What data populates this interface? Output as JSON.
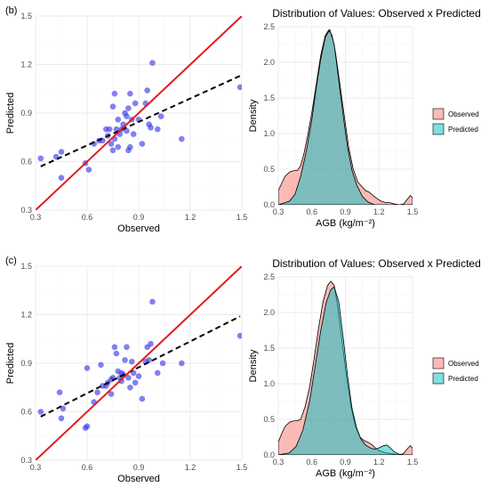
{
  "chart_data": [
    {
      "type": "scatter",
      "panel_label": "(b)",
      "xlabel": "Observed",
      "ylabel": "Predicted",
      "xlim": [
        0.3,
        1.5
      ],
      "ylim": [
        0.3,
        1.5
      ],
      "xticks": [
        "0.3",
        "0.6",
        "0.9",
        "1.2",
        "1.5"
      ],
      "yticks": [
        "0.3",
        "0.6",
        "0.9",
        "1.2",
        "1.5"
      ],
      "grid": true,
      "points": [
        [
          0.33,
          0.62
        ],
        [
          0.42,
          0.63
        ],
        [
          0.45,
          0.66
        ],
        [
          0.45,
          0.5
        ],
        [
          0.59,
          0.59
        ],
        [
          0.61,
          0.55
        ],
        [
          0.64,
          0.71
        ],
        [
          0.67,
          0.73
        ],
        [
          0.69,
          0.73
        ],
        [
          0.71,
          0.8
        ],
        [
          0.72,
          0.76
        ],
        [
          0.73,
          0.8
        ],
        [
          0.74,
          0.71
        ],
        [
          0.75,
          0.67
        ],
        [
          0.75,
          0.94
        ],
        [
          0.76,
          1.02
        ],
        [
          0.76,
          0.74
        ],
        [
          0.77,
          0.8
        ],
        [
          0.78,
          0.69
        ],
        [
          0.78,
          0.86
        ],
        [
          0.79,
          0.77
        ],
        [
          0.8,
          0.8
        ],
        [
          0.81,
          0.83
        ],
        [
          0.82,
          0.9
        ],
        [
          0.83,
          0.88
        ],
        [
          0.83,
          0.79
        ],
        [
          0.84,
          0.93
        ],
        [
          0.84,
          0.67
        ],
        [
          0.85,
          1.02
        ],
        [
          0.85,
          0.69
        ],
        [
          0.86,
          0.86
        ],
        [
          0.87,
          0.77
        ],
        [
          0.88,
          0.96
        ],
        [
          0.9,
          0.86
        ],
        [
          0.92,
          0.71
        ],
        [
          0.94,
          0.96
        ],
        [
          0.95,
          1.04
        ],
        [
          0.96,
          0.83
        ],
        [
          0.97,
          0.81
        ],
        [
          0.98,
          1.21
        ],
        [
          1.01,
          0.8
        ],
        [
          1.03,
          0.88
        ],
        [
          1.15,
          0.74
        ],
        [
          1.49,
          1.06
        ]
      ],
      "identity_line": [
        [
          0.3,
          0.3
        ],
        [
          1.52,
          1.52
        ]
      ],
      "regression_line": [
        [
          0.33,
          0.57
        ],
        [
          1.49,
          1.13
        ]
      ],
      "colors": {
        "points": "#3333e6",
        "identity": "#e31a1c",
        "regression": "#000000"
      }
    },
    {
      "type": "area",
      "title": "Distribution of Values: Observed x Predicted",
      "xlabel": "AGB (kg/m⁻²)",
      "ylabel": "Density",
      "xlim": [
        0.3,
        1.5
      ],
      "ylim": [
        0,
        2.5
      ],
      "xticks": [
        "0.3",
        "0.6",
        "0.9",
        "1.2",
        "1.5"
      ],
      "yticks": [
        "0.0",
        "0.5",
        "1.0",
        "1.5",
        "2.0",
        "2.5"
      ],
      "legend_position": "right",
      "series": [
        {
          "name": "Observed",
          "color": "#f8766d",
          "points": [
            [
              0.3,
              0.2
            ],
            [
              0.33,
              0.3
            ],
            [
              0.36,
              0.4
            ],
            [
              0.4,
              0.46
            ],
            [
              0.44,
              0.48
            ],
            [
              0.47,
              0.48
            ],
            [
              0.5,
              0.55
            ],
            [
              0.53,
              0.72
            ],
            [
              0.56,
              0.95
            ],
            [
              0.6,
              1.3
            ],
            [
              0.64,
              1.7
            ],
            [
              0.68,
              2.1
            ],
            [
              0.72,
              2.38
            ],
            [
              0.75,
              2.45
            ],
            [
              0.78,
              2.38
            ],
            [
              0.81,
              2.15
            ],
            [
              0.85,
              1.7
            ],
            [
              0.89,
              1.25
            ],
            [
              0.93,
              0.8
            ],
            [
              0.97,
              0.5
            ],
            [
              1.01,
              0.32
            ],
            [
              1.05,
              0.25
            ],
            [
              1.08,
              0.2
            ],
            [
              1.11,
              0.18
            ],
            [
              1.14,
              0.14
            ],
            [
              1.18,
              0.09
            ],
            [
              1.22,
              0.05
            ],
            [
              1.26,
              0.03
            ],
            [
              1.3,
              0.03
            ],
            [
              1.34,
              0.01
            ],
            [
              1.38,
              0.0
            ],
            [
              1.42,
              0.01
            ],
            [
              1.45,
              0.07
            ],
            [
              1.48,
              0.13
            ],
            [
              1.5,
              0.1
            ]
          ]
        },
        {
          "name": "Predicted",
          "color": "#00bfc4",
          "points": [
            [
              0.3,
              0.0
            ],
            [
              0.4,
              0.05
            ],
            [
              0.45,
              0.15
            ],
            [
              0.5,
              0.4
            ],
            [
              0.55,
              0.75
            ],
            [
              0.6,
              1.2
            ],
            [
              0.64,
              1.65
            ],
            [
              0.68,
              2.05
            ],
            [
              0.72,
              2.35
            ],
            [
              0.76,
              2.46
            ],
            [
              0.8,
              2.25
            ],
            [
              0.84,
              1.75
            ],
            [
              0.88,
              1.25
            ],
            [
              0.92,
              0.8
            ],
            [
              0.96,
              0.48
            ],
            [
              1.0,
              0.28
            ],
            [
              1.05,
              0.12
            ],
            [
              1.1,
              0.04
            ],
            [
              1.16,
              0.0
            ],
            [
              1.2,
              0.0
            ],
            [
              1.5,
              0.0
            ]
          ]
        }
      ]
    },
    {
      "type": "scatter",
      "panel_label": "(c)",
      "xlabel": "Observed",
      "ylabel": "Predicted",
      "xlim": [
        0.3,
        1.5
      ],
      "ylim": [
        0.3,
        1.5
      ],
      "xticks": [
        "0.3",
        "0.6",
        "0.9",
        "1.2",
        "1.5"
      ],
      "yticks": [
        "0.3",
        "0.6",
        "0.9",
        "1.2",
        "1.5"
      ],
      "grid": true,
      "points": [
        [
          0.33,
          0.6
        ],
        [
          0.44,
          0.72
        ],
        [
          0.45,
          0.56
        ],
        [
          0.46,
          0.62
        ],
        [
          0.59,
          0.5
        ],
        [
          0.6,
          0.51
        ],
        [
          0.6,
          0.87
        ],
        [
          0.64,
          0.66
        ],
        [
          0.66,
          0.72
        ],
        [
          0.68,
          0.89
        ],
        [
          0.69,
          0.76
        ],
        [
          0.71,
          0.76
        ],
        [
          0.72,
          0.78
        ],
        [
          0.74,
          0.71
        ],
        [
          0.74,
          0.8
        ],
        [
          0.75,
          0.81
        ],
        [
          0.76,
          1.0
        ],
        [
          0.77,
          0.96
        ],
        [
          0.78,
          0.85
        ],
        [
          0.79,
          0.81
        ],
        [
          0.8,
          0.79
        ],
        [
          0.8,
          0.84
        ],
        [
          0.81,
          0.83
        ],
        [
          0.82,
          0.92
        ],
        [
          0.83,
          1.0
        ],
        [
          0.84,
          0.81
        ],
        [
          0.85,
          0.75
        ],
        [
          0.86,
          0.91
        ],
        [
          0.87,
          0.84
        ],
        [
          0.88,
          0.78
        ],
        [
          0.9,
          0.82
        ],
        [
          0.92,
          0.68
        ],
        [
          0.94,
          0.91
        ],
        [
          0.95,
          1.0
        ],
        [
          0.96,
          0.92
        ],
        [
          0.97,
          1.02
        ],
        [
          0.98,
          1.28
        ],
        [
          1.01,
          0.84
        ],
        [
          1.04,
          0.9
        ],
        [
          1.15,
          0.9
        ],
        [
          1.49,
          1.07
        ]
      ],
      "identity_line": [
        [
          0.3,
          0.3
        ],
        [
          1.52,
          1.52
        ]
      ],
      "regression_line": [
        [
          0.33,
          0.57
        ],
        [
          1.49,
          1.19
        ]
      ],
      "colors": {
        "points": "#3333e6",
        "identity": "#e31a1c",
        "regression": "#000000"
      }
    },
    {
      "type": "area",
      "title": "Distribution of Values: Observed x Predicted",
      "xlabel": "AGB (kg/m⁻²)",
      "ylabel": "Density",
      "xlim": [
        0.3,
        1.5
      ],
      "ylim": [
        0,
        2.5
      ],
      "xticks": [
        "0.3",
        "0.6",
        "0.9",
        "1.2",
        "1.5"
      ],
      "yticks": [
        "0.0",
        "0.5",
        "1.0",
        "1.5",
        "2.0",
        "2.5"
      ],
      "legend_position": "right",
      "series": [
        {
          "name": "Observed",
          "color": "#f8766d",
          "points": [
            [
              0.3,
              0.18
            ],
            [
              0.33,
              0.3
            ],
            [
              0.36,
              0.4
            ],
            [
              0.4,
              0.46
            ],
            [
              0.44,
              0.48
            ],
            [
              0.47,
              0.48
            ],
            [
              0.5,
              0.5
            ],
            [
              0.54,
              0.68
            ],
            [
              0.58,
              0.95
            ],
            [
              0.62,
              1.35
            ],
            [
              0.66,
              1.78
            ],
            [
              0.7,
              2.15
            ],
            [
              0.74,
              2.38
            ],
            [
              0.77,
              2.44
            ],
            [
              0.8,
              2.38
            ],
            [
              0.83,
              2.1
            ],
            [
              0.87,
              1.6
            ],
            [
              0.91,
              1.1
            ],
            [
              0.95,
              0.68
            ],
            [
              0.99,
              0.4
            ],
            [
              1.03,
              0.25
            ],
            [
              1.07,
              0.2
            ],
            [
              1.1,
              0.18
            ],
            [
              1.14,
              0.14
            ],
            [
              1.18,
              0.08
            ],
            [
              1.22,
              0.05
            ],
            [
              1.26,
              0.03
            ],
            [
              1.3,
              0.02
            ],
            [
              1.34,
              0.01
            ],
            [
              1.38,
              0.0
            ],
            [
              1.42,
              0.02
            ],
            [
              1.45,
              0.08
            ],
            [
              1.48,
              0.13
            ],
            [
              1.5,
              0.1
            ]
          ]
        },
        {
          "name": "Predicted",
          "color": "#00bfc4",
          "points": [
            [
              0.3,
              0.0
            ],
            [
              0.4,
              0.03
            ],
            [
              0.46,
              0.12
            ],
            [
              0.52,
              0.35
            ],
            [
              0.58,
              0.75
            ],
            [
              0.63,
              1.25
            ],
            [
              0.68,
              1.75
            ],
            [
              0.73,
              2.15
            ],
            [
              0.77,
              2.32
            ],
            [
              0.8,
              2.36
            ],
            [
              0.84,
              2.15
            ],
            [
              0.88,
              1.65
            ],
            [
              0.92,
              1.1
            ],
            [
              0.96,
              0.65
            ],
            [
              1.0,
              0.38
            ],
            [
              1.04,
              0.22
            ],
            [
              1.08,
              0.14
            ],
            [
              1.12,
              0.1
            ],
            [
              1.16,
              0.08
            ],
            [
              1.2,
              0.1
            ],
            [
              1.24,
              0.13
            ],
            [
              1.27,
              0.14
            ],
            [
              1.3,
              0.1
            ],
            [
              1.34,
              0.04
            ],
            [
              1.38,
              0.01
            ],
            [
              1.42,
              0.0
            ],
            [
              1.5,
              0.0
            ]
          ]
        }
      ]
    }
  ]
}
